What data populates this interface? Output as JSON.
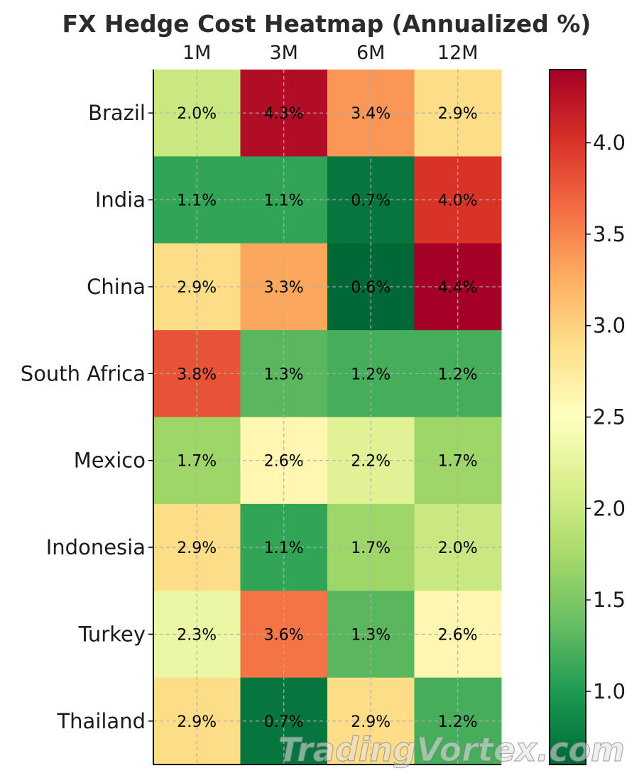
{
  "chart_data": {
    "type": "heatmap",
    "title": "FX Hedge Cost Heatmap (Annualized %)",
    "columns": [
      "1M",
      "3M",
      "6M",
      "12M"
    ],
    "rows": [
      "Brazil",
      "India",
      "China",
      "South Africa",
      "Mexico",
      "Indonesia",
      "Turkey",
      "Thailand"
    ],
    "values": [
      [
        2.0,
        4.3,
        3.4,
        2.9
      ],
      [
        1.1,
        1.1,
        0.7,
        4.0
      ],
      [
        2.9,
        3.3,
        0.6,
        4.4
      ],
      [
        3.8,
        1.3,
        1.2,
        1.2
      ],
      [
        1.7,
        2.6,
        2.2,
        1.7
      ],
      [
        2.9,
        1.1,
        1.7,
        2.0
      ],
      [
        2.3,
        3.6,
        1.3,
        2.6
      ],
      [
        2.9,
        0.7,
        2.9,
        1.2
      ]
    ],
    "cell_labels": [
      [
        "2.0%",
        "4.3%",
        "3.4%",
        "2.9%"
      ],
      [
        "1.1%",
        "1.1%",
        "0.7%",
        "4.0%"
      ],
      [
        "2.9%",
        "3.3%",
        "0.6%",
        "4.4%"
      ],
      [
        "3.8%",
        "1.3%",
        "1.2%",
        "1.2%"
      ],
      [
        "1.7%",
        "2.6%",
        "2.2%",
        "1.7%"
      ],
      [
        "2.9%",
        "1.1%",
        "1.7%",
        "2.0%"
      ],
      [
        "2.3%",
        "3.6%",
        "1.3%",
        "2.6%"
      ],
      [
        "2.9%",
        "0.7%",
        "2.9%",
        "1.2%"
      ]
    ],
    "colormap": "RdYlGn_r",
    "colorbar": {
      "min": 0.6,
      "max": 4.4,
      "ticks": [
        1.0,
        1.5,
        2.0,
        2.5,
        3.0,
        3.5,
        4.0
      ],
      "tick_labels": [
        "1.0",
        "1.5",
        "2.0",
        "2.5",
        "3.0",
        "3.5",
        "4.0"
      ]
    },
    "grid": true,
    "xaxis_position": "top"
  },
  "watermark": "TradingVortex.com"
}
